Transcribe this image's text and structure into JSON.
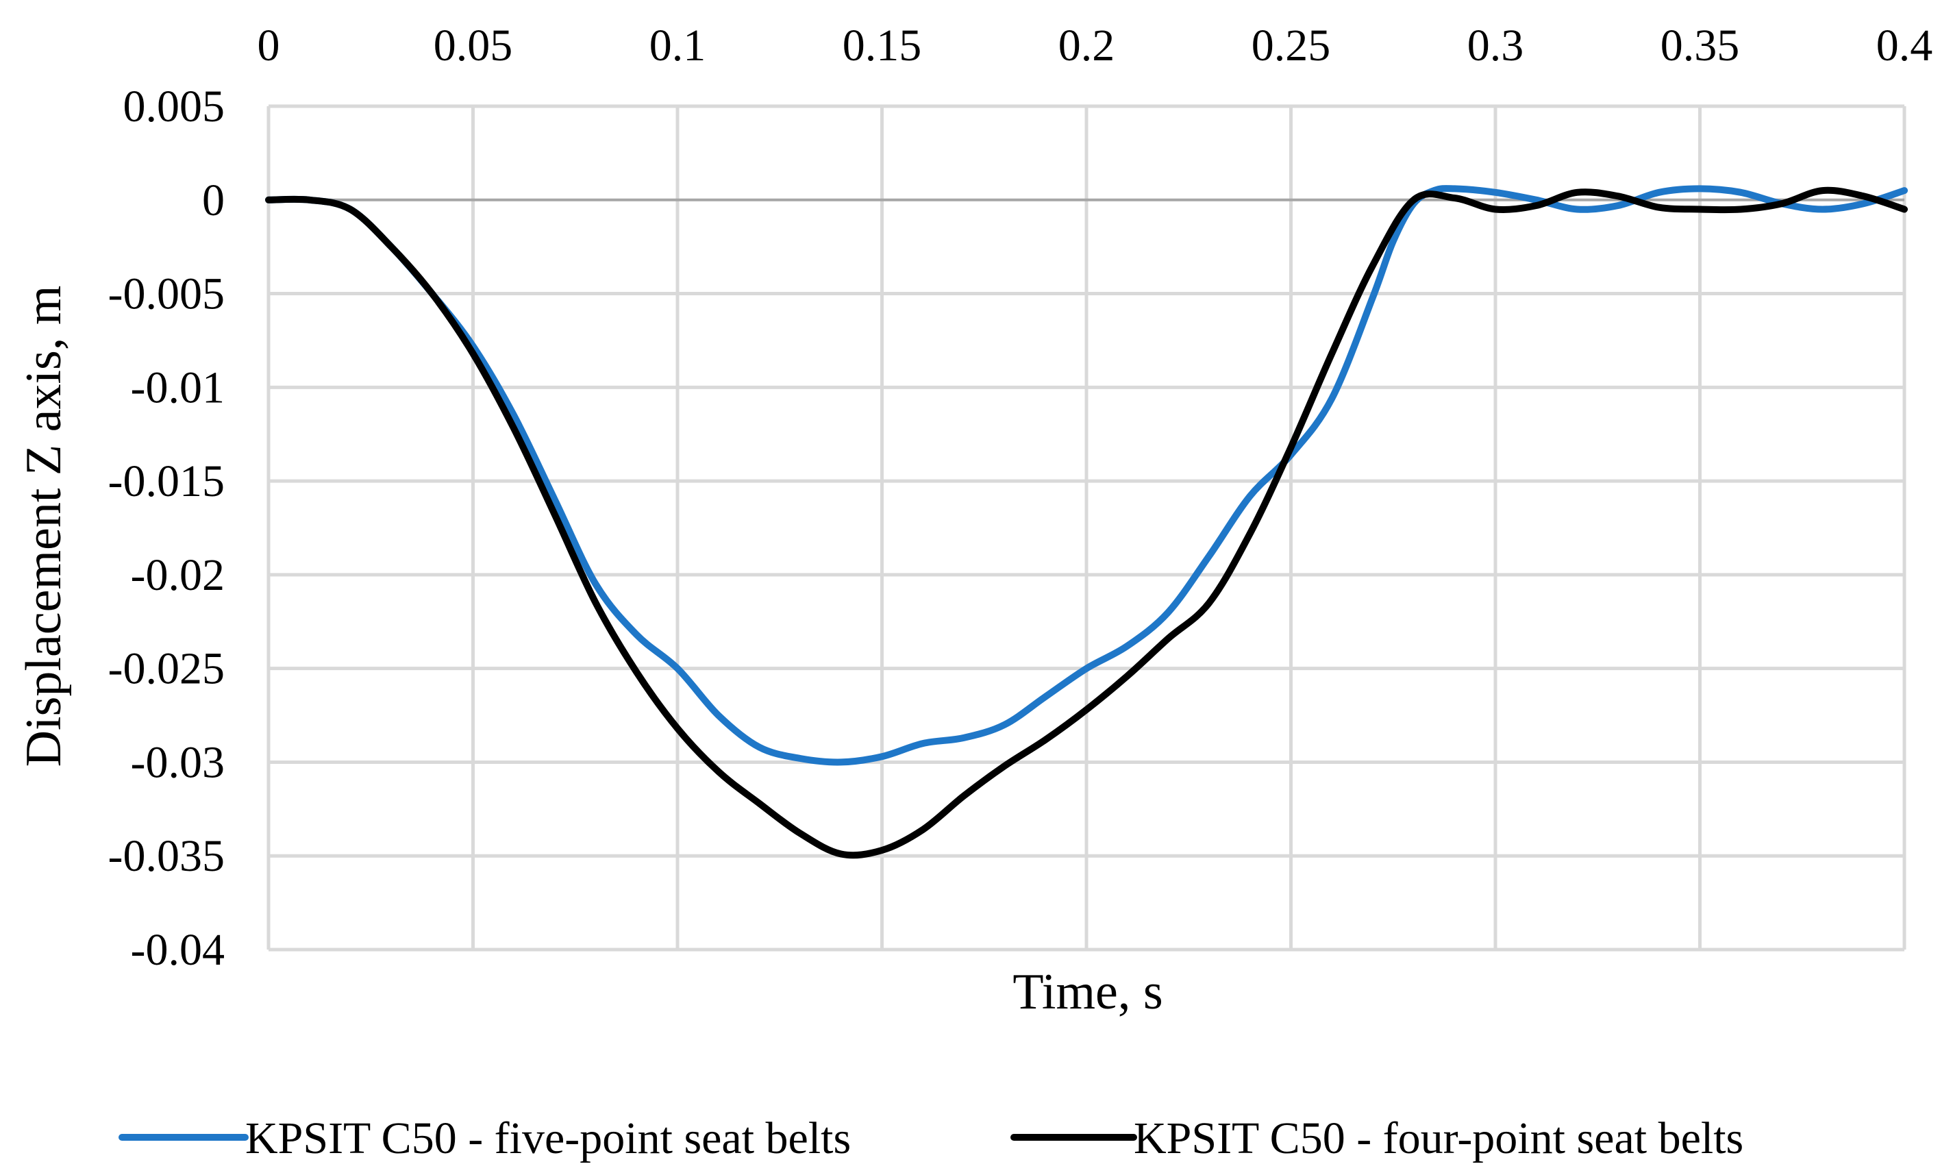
{
  "chart_data": {
    "type": "line",
    "title": "",
    "xlabel": "Time, s",
    "ylabel": "Displacement Z axis, m",
    "xlim": [
      0,
      0.4
    ],
    "ylim": [
      -0.04,
      0.005
    ],
    "x_ticks": [
      0,
      0.05,
      0.1,
      0.15,
      0.2,
      0.25,
      0.3,
      0.35,
      0.4
    ],
    "x_tick_labels": [
      "0",
      "0.05",
      "0.1",
      "0.15",
      "0.2",
      "0.25",
      "0.3",
      "0.35",
      "0.4"
    ],
    "y_ticks": [
      0.005,
      0,
      -0.005,
      -0.01,
      -0.015,
      -0.02,
      -0.025,
      -0.03,
      -0.035,
      -0.04
    ],
    "y_tick_labels": [
      "0.005",
      "0",
      "-0.005",
      "-0.01",
      "-0.015",
      "-0.02",
      "-0.025",
      "-0.03",
      "-0.035",
      "-0.04"
    ],
    "x_axis_position": "top",
    "grid": true,
    "legend_position": "bottom",
    "series": [
      {
        "name": "KPSIT C50 - five-point seat belts",
        "color": "#1f77c8",
        "x": [
          0,
          0.01,
          0.02,
          0.03,
          0.04,
          0.05,
          0.06,
          0.07,
          0.08,
          0.09,
          0.1,
          0.11,
          0.12,
          0.13,
          0.14,
          0.15,
          0.16,
          0.17,
          0.18,
          0.19,
          0.2,
          0.21,
          0.22,
          0.23,
          0.24,
          0.25,
          0.26,
          0.27,
          0.275,
          0.28,
          0.285,
          0.29,
          0.3,
          0.31,
          0.32,
          0.33,
          0.34,
          0.35,
          0.36,
          0.37,
          0.38,
          0.39,
          0.4
        ],
        "y": [
          0,
          0,
          -0.0005,
          -0.0025,
          -0.005,
          -0.0078,
          -0.0115,
          -0.016,
          -0.0205,
          -0.0232,
          -0.025,
          -0.0275,
          -0.0292,
          -0.0298,
          -0.03,
          -0.0297,
          -0.029,
          -0.0287,
          -0.028,
          -0.0265,
          -0.025,
          -0.0238,
          -0.022,
          -0.019,
          -0.0158,
          -0.0136,
          -0.0106,
          -0.0052,
          -0.0022,
          -0.0002,
          0.0005,
          0.0006,
          0.0004,
          0.0,
          -0.0005,
          -0.0003,
          0.0004,
          0.0006,
          0.0004,
          -0.0002,
          -0.0005,
          -0.0002,
          0.0005
        ]
      },
      {
        "name": "KPSIT C50 - four-point seat belts",
        "color": "#000000",
        "x": [
          0,
          0.01,
          0.02,
          0.03,
          0.04,
          0.05,
          0.06,
          0.07,
          0.08,
          0.09,
          0.1,
          0.11,
          0.12,
          0.13,
          0.14,
          0.15,
          0.16,
          0.17,
          0.18,
          0.19,
          0.2,
          0.21,
          0.22,
          0.23,
          0.24,
          0.25,
          0.26,
          0.27,
          0.28,
          0.29,
          0.3,
          0.31,
          0.32,
          0.33,
          0.34,
          0.35,
          0.36,
          0.37,
          0.38,
          0.39,
          0.4
        ],
        "y": [
          0,
          0,
          -0.0005,
          -0.0025,
          -0.005,
          -0.0082,
          -0.0122,
          -0.0168,
          -0.0215,
          -0.0252,
          -0.0282,
          -0.0305,
          -0.0322,
          -0.0338,
          -0.0349,
          -0.0347,
          -0.0336,
          -0.0318,
          -0.0302,
          -0.0288,
          -0.0272,
          -0.0254,
          -0.0234,
          -0.0215,
          -0.0178,
          -0.0132,
          -0.0082,
          -0.0035,
          0.0,
          0.0001,
          -0.0005,
          -0.0003,
          0.0004,
          0.0002,
          -0.0004,
          -0.0005,
          -0.0005,
          -0.0002,
          0.0005,
          0.0002,
          -0.0005
        ]
      }
    ]
  }
}
